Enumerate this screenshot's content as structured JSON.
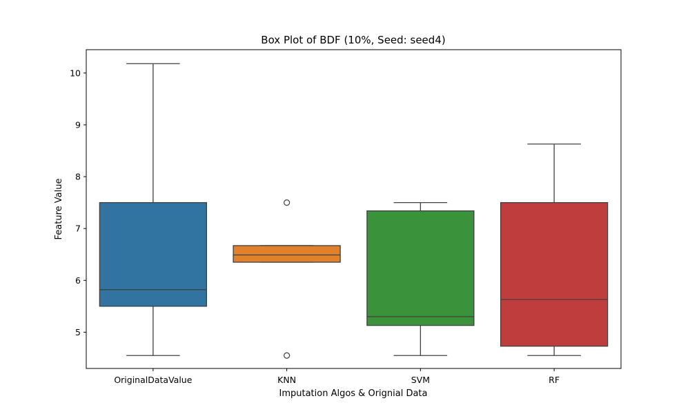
{
  "chart_data": {
    "type": "box",
    "title": "Box Plot of BDF (10%, Seed: seed4)",
    "xlabel": "Imputation Algos & Orignial Data",
    "ylabel": "Feature Value",
    "ylim": [
      4.3,
      10.45
    ],
    "yticks": [
      5,
      6,
      7,
      8,
      9,
      10
    ],
    "ytick_labels": [
      "5",
      "6",
      "7",
      "8",
      "9",
      "10"
    ],
    "categories": [
      "OriginalDataValue",
      "KNN",
      "SVM",
      "RF"
    ],
    "colors": [
      "#3274a1",
      "#e1812c",
      "#3a923a",
      "#c03d3e"
    ],
    "boxes": [
      {
        "whisker_low": 4.55,
        "q1": 5.5,
        "median": 5.82,
        "q3": 7.5,
        "whisker_high": 10.18,
        "outliers": []
      },
      {
        "whisker_low": 6.35,
        "q1": 6.35,
        "median": 6.49,
        "q3": 6.67,
        "whisker_high": 6.67,
        "outliers": [
          7.5,
          4.55
        ]
      },
      {
        "whisker_low": 4.55,
        "q1": 5.13,
        "median": 5.3,
        "q3": 7.34,
        "whisker_high": 7.5,
        "outliers": []
      },
      {
        "whisker_low": 4.55,
        "q1": 4.73,
        "median": 5.63,
        "q3": 7.5,
        "whisker_high": 8.63,
        "outliers": []
      }
    ],
    "grid": false,
    "legend": "none"
  }
}
